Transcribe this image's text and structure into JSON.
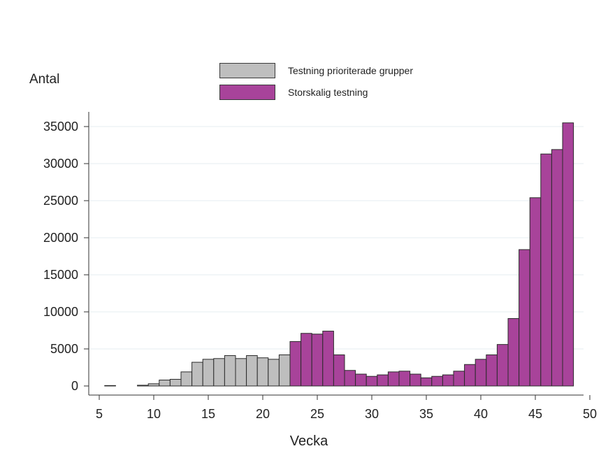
{
  "chart_data": {
    "type": "bar",
    "title": "",
    "xlabel": "Vecka",
    "ylabel": "Antal",
    "xlim": [
      5,
      50
    ],
    "ylim": [
      0,
      37000
    ],
    "xticks": [
      5,
      10,
      15,
      20,
      25,
      30,
      35,
      40,
      45,
      50
    ],
    "yticks": [
      0,
      5000,
      10000,
      15000,
      20000,
      25000,
      30000,
      35000
    ],
    "grid": true,
    "legend_position": "top",
    "series": [
      {
        "name": "Testning prioriterade grupper",
        "color": "#bebebe",
        "x": [
          6,
          9,
          10,
          11,
          12,
          13,
          14,
          15,
          16,
          17,
          18,
          19,
          20,
          21,
          22
        ],
        "values": [
          60,
          100,
          300,
          800,
          900,
          1900,
          3200,
          3600,
          3700,
          4100,
          3700,
          4100,
          3800,
          3600,
          4200
        ]
      },
      {
        "name": "Storskalig testning",
        "color": "#a8439a",
        "x": [
          23,
          24,
          25,
          26,
          27,
          28,
          29,
          30,
          31,
          32,
          33,
          34,
          35,
          36,
          37,
          38,
          39,
          40,
          41,
          42,
          43,
          44,
          45,
          46,
          47,
          48
        ],
        "values": [
          6000,
          7100,
          7000,
          7400,
          4200,
          2100,
          1600,
          1300,
          1500,
          1900,
          2000,
          1600,
          1100,
          1300,
          1500,
          2000,
          2900,
          3600,
          4200,
          5600,
          9100,
          18400,
          25400,
          31300,
          31900,
          35500
        ]
      }
    ]
  }
}
